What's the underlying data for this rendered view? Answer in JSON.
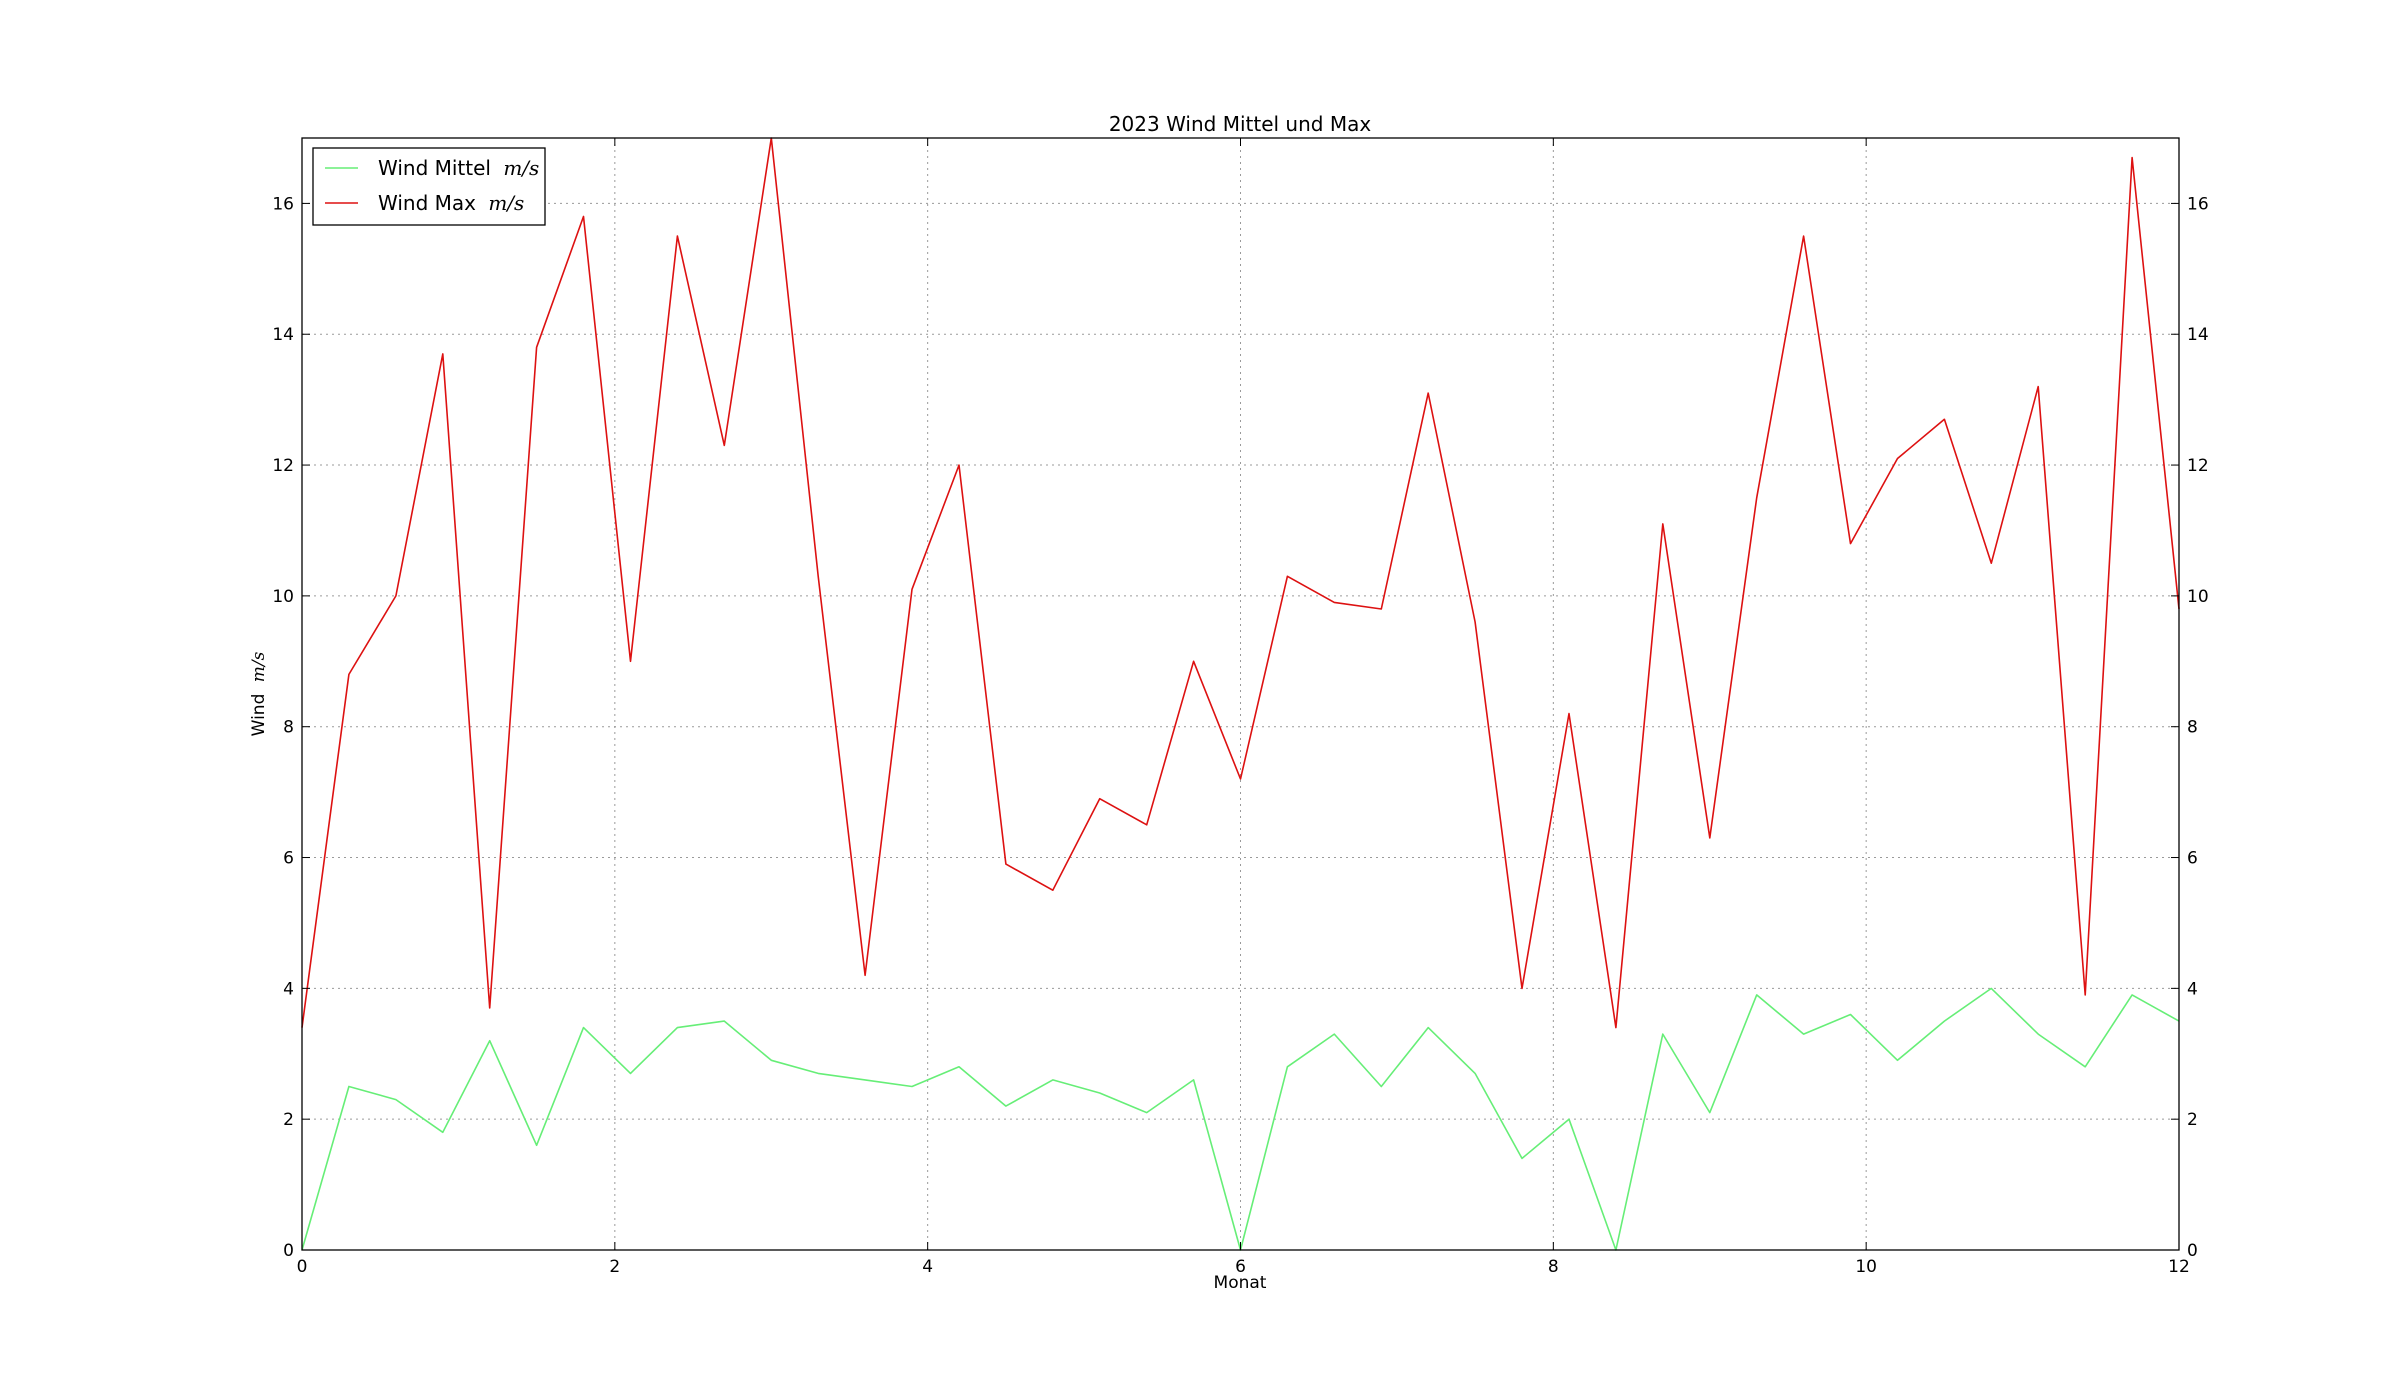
{
  "chart_data": {
    "type": "line",
    "title": "2023 Wind Mittel und Max",
    "xlabel": "Monat",
    "ylabel": "Wind",
    "ylabel_unit": "m/s",
    "xlim": [
      0,
      12
    ],
    "ylim": [
      0,
      17
    ],
    "xticks": [
      0,
      2,
      4,
      6,
      8,
      10,
      12
    ],
    "yticks": [
      0,
      2,
      4,
      6,
      8,
      10,
      12,
      14,
      16
    ],
    "grid": true,
    "right_axis_labels": true,
    "legend_position": "upper-left",
    "series": [
      {
        "name": "Wind Mittel",
        "unit": "m/s",
        "color": "#66ee77",
        "x": [
          0.0,
          0.3,
          0.6,
          0.9,
          1.2,
          1.5,
          1.8,
          2.1,
          2.4,
          2.7,
          3.0,
          3.3,
          3.6,
          3.9,
          4.2,
          4.5,
          4.8,
          5.1,
          5.4,
          5.7,
          6.0,
          6.3,
          6.6,
          6.9,
          7.2,
          7.5,
          7.8,
          8.1,
          8.4,
          8.7,
          9.0,
          9.3,
          9.6,
          9.9,
          10.2,
          10.5,
          10.8,
          11.1,
          11.4,
          11.7,
          12.0
        ],
        "y": [
          0.0,
          2.5,
          2.3,
          1.8,
          3.2,
          1.6,
          3.4,
          2.7,
          3.4,
          3.5,
          2.9,
          2.7,
          2.6,
          2.5,
          2.8,
          2.2,
          2.6,
          2.4,
          2.1,
          2.6,
          0.0,
          2.8,
          3.3,
          2.5,
          3.4,
          2.7,
          1.4,
          2.0,
          0.0,
          3.3,
          2.1,
          3.9,
          3.3,
          3.6,
          2.9,
          3.5,
          4.0,
          3.3,
          2.8,
          3.9,
          3.5
        ]
      },
      {
        "name": "Wind Max",
        "unit": "m/s",
        "color": "#dd1111",
        "x": [
          0.0,
          0.3,
          0.6,
          0.9,
          1.2,
          1.5,
          1.8,
          2.1,
          2.4,
          2.7,
          3.0,
          3.3,
          3.6,
          3.9,
          4.2,
          4.5,
          4.8,
          5.1,
          5.4,
          5.7,
          6.0,
          6.3,
          6.6,
          6.9,
          7.2,
          7.5,
          7.8,
          8.1,
          8.4,
          8.7,
          9.0,
          9.3,
          9.6,
          9.9,
          10.2,
          10.5,
          10.8,
          11.1,
          11.4,
          11.7,
          12.0
        ],
        "y": [
          3.4,
          8.8,
          10.0,
          13.7,
          3.7,
          13.8,
          15.8,
          9.0,
          15.5,
          12.3,
          17.0,
          10.3,
          4.2,
          10.1,
          12.0,
          5.9,
          5.5,
          6.9,
          6.5,
          9.0,
          7.2,
          10.3,
          9.9,
          9.8,
          13.1,
          9.6,
          4.0,
          8.2,
          3.4,
          11.1,
          6.3,
          11.5,
          15.5,
          10.8,
          12.1,
          12.7,
          10.5,
          13.2,
          3.9,
          16.7,
          9.8
        ]
      }
    ]
  }
}
